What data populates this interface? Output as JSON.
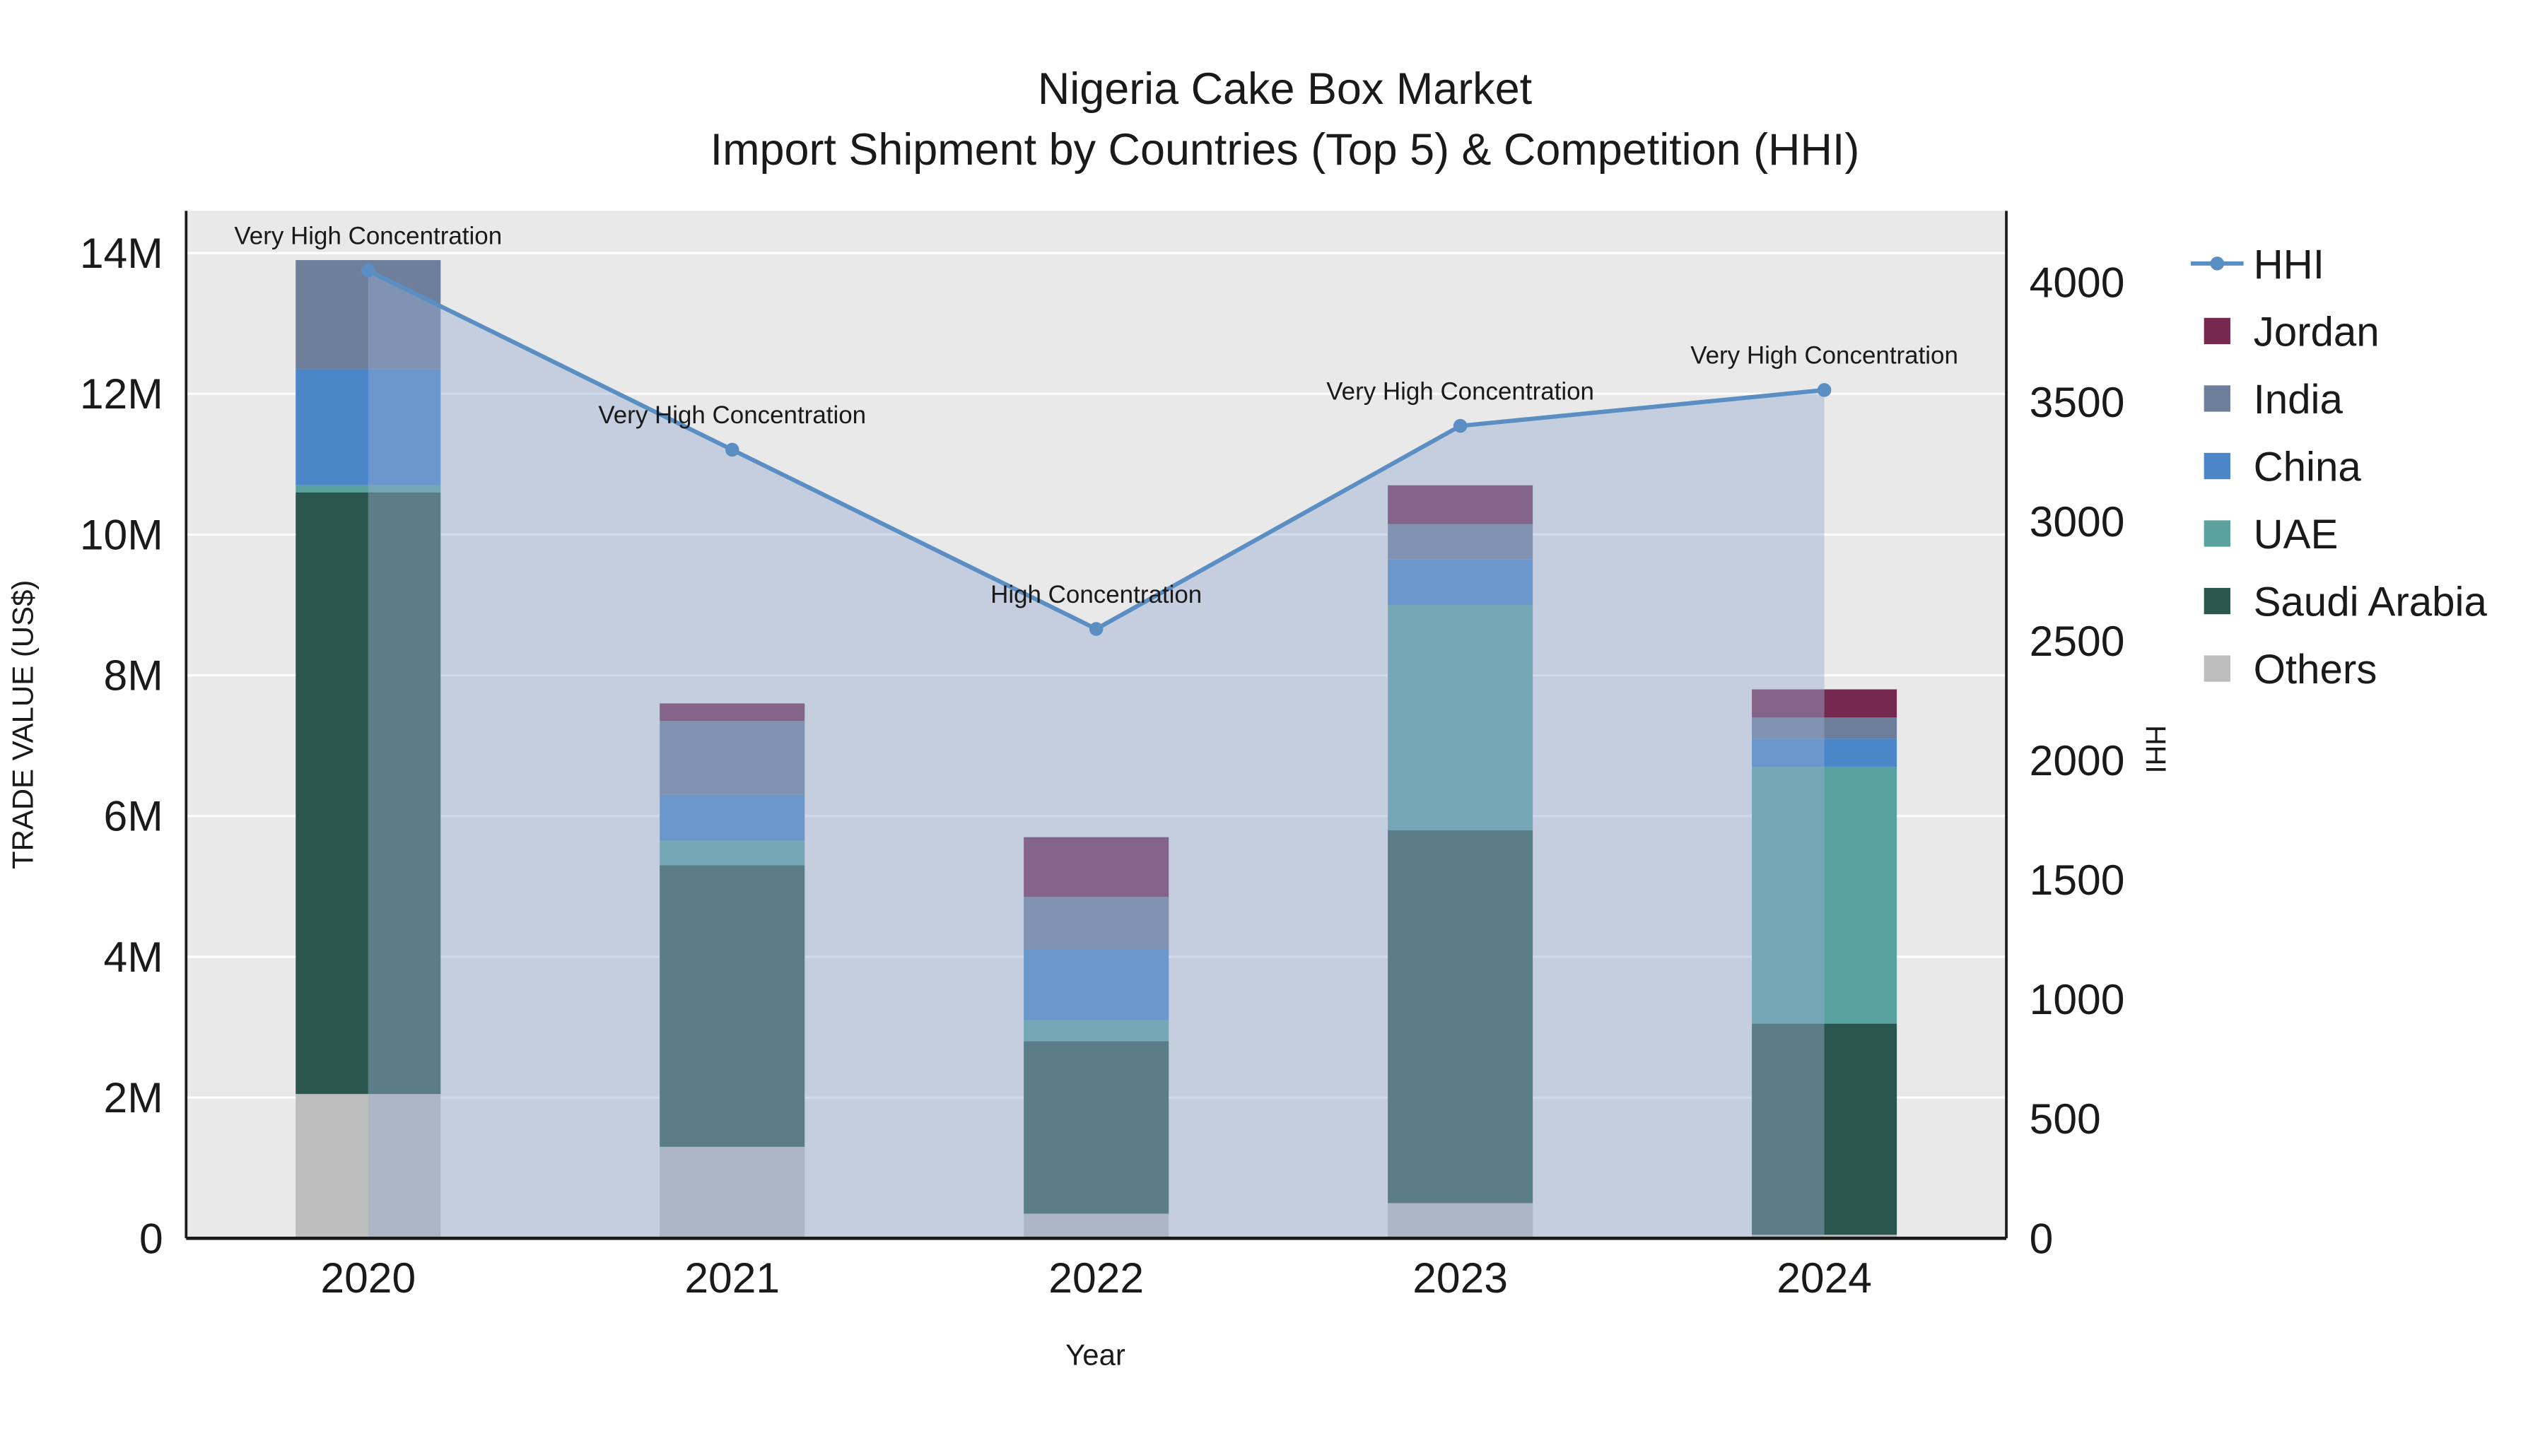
{
  "title": {
    "line1": "Nigeria Cake Box Market",
    "line2": "Import Shipment by Countries (Top 5) & Competition (HHI)"
  },
  "axes": {
    "x_title": "Year",
    "y_left_title": "TRADE VALUE (US$)",
    "y_right_title": "HHI"
  },
  "legend": {
    "entries": [
      {
        "label": "HHI",
        "marker": "line",
        "color": "#5b8fc4"
      },
      {
        "label": "Jordan",
        "marker": "square",
        "color": "#76294f"
      },
      {
        "label": "India",
        "marker": "square",
        "color": "#6e7f9b"
      },
      {
        "label": "China",
        "marker": "square",
        "color": "#4a86c8"
      },
      {
        "label": "UAE",
        "marker": "square",
        "color": "#5aa2a0"
      },
      {
        "label": "Saudi Arabia",
        "marker": "square",
        "color": "#2b564e"
      },
      {
        "label": "Others",
        "marker": "square",
        "color": "#bdbdbd"
      }
    ]
  },
  "chart_data": {
    "type": "combo",
    "subtype": "stacked-bar+line",
    "title": "Nigeria Cake Box Market — Import Shipment by Countries (Top 5) & Competition (HHI)",
    "categories": [
      "2020",
      "2021",
      "2022",
      "2023",
      "2024"
    ],
    "xlabel": "Year",
    "y_left": {
      "label": "TRADE VALUE (US$)",
      "unit": "millions USD",
      "range": [
        0,
        14.6
      ],
      "tick_values": [
        0,
        2,
        4,
        6,
        8,
        10,
        12,
        14
      ],
      "tick_labels": [
        "0",
        "2M",
        "4M",
        "6M",
        "8M",
        "10M",
        "12M",
        "14M"
      ]
    },
    "y_right": {
      "label": "HHI",
      "range": [
        0,
        4300
      ],
      "tick_values": [
        0,
        500,
        1000,
        1500,
        2000,
        2500,
        3000,
        3500,
        4000
      ],
      "tick_labels": [
        "0",
        "500",
        "1000",
        "1500",
        "2000",
        "2500",
        "3000",
        "3500",
        "4000"
      ]
    },
    "bar_series": [
      {
        "name": "Others",
        "color": "#bdbdbd",
        "values": [
          2.05,
          1.3,
          0.35,
          0.5,
          0.05
        ]
      },
      {
        "name": "Saudi Arabia",
        "color": "#2b564e",
        "values": [
          8.55,
          4.0,
          2.45,
          5.3,
          3.0
        ]
      },
      {
        "name": "UAE",
        "color": "#5aa2a0",
        "values": [
          0.1,
          0.35,
          0.3,
          3.2,
          3.65
        ]
      },
      {
        "name": "China",
        "color": "#4a86c8",
        "values": [
          1.65,
          0.65,
          1.0,
          0.65,
          0.4
        ]
      },
      {
        "name": "India",
        "color": "#6e7f9b",
        "values": [
          1.55,
          1.05,
          0.75,
          0.5,
          0.3
        ]
      },
      {
        "name": "Jordan",
        "color": "#76294f",
        "values": [
          0,
          0.25,
          0.85,
          0.55,
          0.4
        ]
      }
    ],
    "bar_totals_musd": [
      13.9,
      7.6,
      5.7,
      10.7,
      7.8
    ],
    "line_series": {
      "name": "HHI",
      "color": "#5b8fc4",
      "values": [
        4050,
        3300,
        2550,
        3400,
        3550
      ],
      "area_fill": "#96add0",
      "area_opacity": 0.45
    },
    "annotations": [
      "Very High Concentration",
      "Very High Concentration",
      "High Concentration",
      "Very High Concentration",
      "Very High Concentration"
    ],
    "plot_bg": "#e9e9e9",
    "grid_color": "#ffffff",
    "axis_color": "#1a1a1a",
    "legend_position": "right"
  }
}
